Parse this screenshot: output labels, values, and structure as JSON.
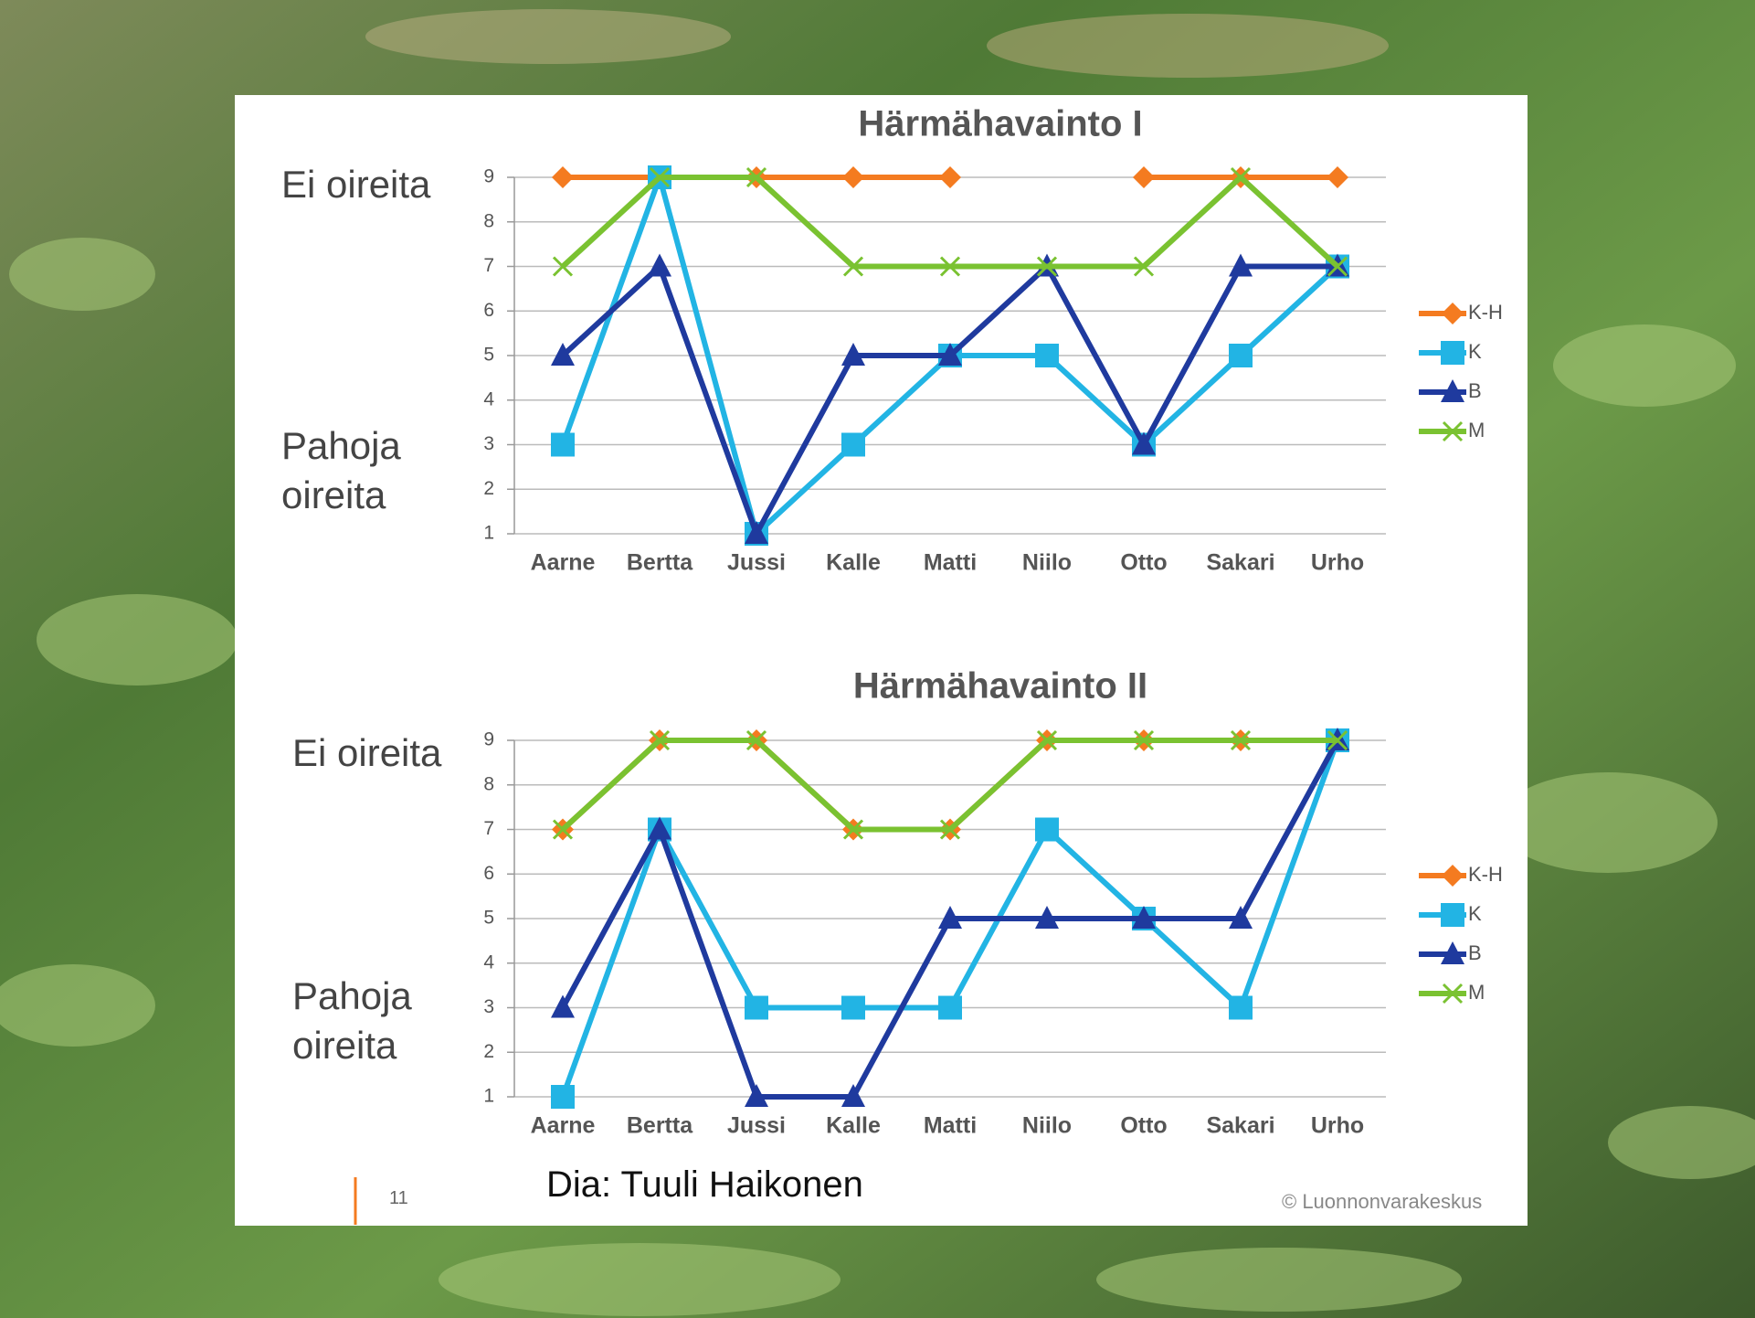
{
  "chart_data": [
    {
      "type": "line",
      "title": "Härmähavainto I",
      "annotations": [
        "Ei oireita",
        "Pahoja oireita"
      ],
      "categories": [
        "Aarne",
        "Bertta",
        "Jussi",
        "Kalle",
        "Matti",
        "Niilo",
        "Otto",
        "Sakari",
        "Urho"
      ],
      "series": [
        {
          "name": "K-H",
          "color": "#f47b20",
          "marker": "diamond",
          "values": [
            9,
            9,
            9,
            9,
            9,
            null,
            9,
            9,
            9
          ]
        },
        {
          "name": "K",
          "color": "#22b4e4",
          "marker": "square",
          "values": [
            3,
            9,
            1,
            3,
            5,
            5,
            3,
            5,
            7
          ]
        },
        {
          "name": "B",
          "color": "#1f3a9e",
          "marker": "triangle",
          "values": [
            5,
            7,
            1,
            5,
            5,
            7,
            3,
            7,
            7
          ]
        },
        {
          "name": "M",
          "color": "#7ac231",
          "marker": "x",
          "values": [
            7,
            9,
            9,
            7,
            7,
            7,
            7,
            9,
            7
          ]
        }
      ],
      "ylim": [
        1,
        9
      ],
      "yticks": [
        1,
        2,
        3,
        4,
        5,
        6,
        7,
        8,
        9
      ],
      "grid": true,
      "legend": "right"
    },
    {
      "type": "line",
      "title": "Härmähavainto II",
      "annotations": [
        "Ei oireita",
        "Pahoja oireita"
      ],
      "categories": [
        "Aarne",
        "Bertta",
        "Jussi",
        "Kalle",
        "Matti",
        "Niilo",
        "Otto",
        "Sakari",
        "Urho"
      ],
      "series": [
        {
          "name": "K-H",
          "color": "#f47b20",
          "marker": "diamond",
          "values": [
            7,
            9,
            9,
            7,
            7,
            9,
            9,
            9,
            9
          ]
        },
        {
          "name": "K",
          "color": "#22b4e4",
          "marker": "square",
          "values": [
            1,
            7,
            3,
            3,
            3,
            7,
            5,
            3,
            9
          ]
        },
        {
          "name": "B",
          "color": "#1f3a9e",
          "marker": "triangle",
          "values": [
            3,
            7,
            1,
            1,
            5,
            5,
            5,
            5,
            9
          ]
        },
        {
          "name": "M",
          "color": "#7ac231",
          "marker": "x",
          "values": [
            7,
            9,
            9,
            7,
            7,
            9,
            9,
            9,
            9
          ]
        }
      ],
      "ylim": [
        1,
        9
      ],
      "yticks": [
        1,
        2,
        3,
        4,
        5,
        6,
        7,
        8,
        9
      ],
      "grid": true,
      "legend": "right"
    }
  ],
  "footer": {
    "page": "11",
    "credit": "Dia: Tuuli Haikonen",
    "copyright": "© Luonnonvarakeskus"
  }
}
